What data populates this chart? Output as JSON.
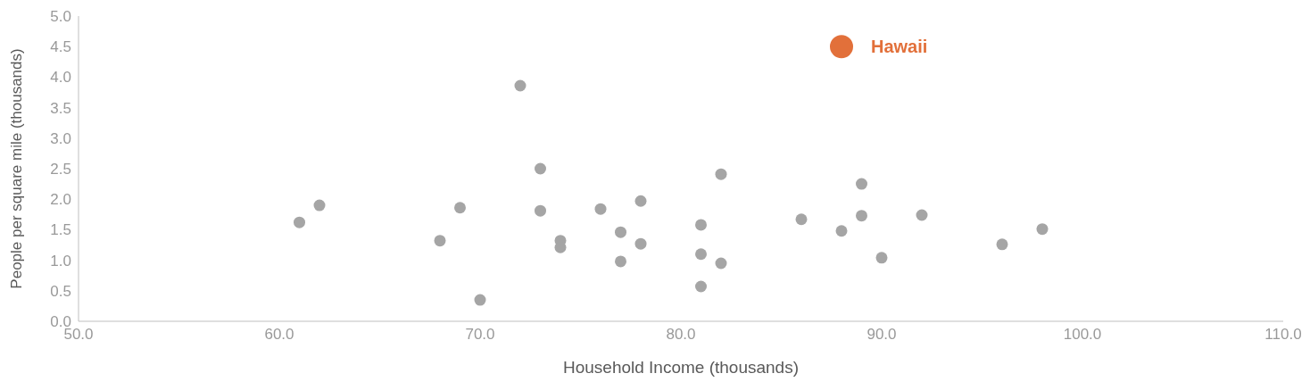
{
  "chart_data": {
    "type": "scatter",
    "xlabel": "Household Income (thousands)",
    "ylabel": "People per square mile (thousands)",
    "marker": "circle",
    "xlim": [
      50,
      110
    ],
    "ylim": [
      0,
      5
    ],
    "xticks": [
      {
        "value": 50,
        "label": "50.0"
      },
      {
        "value": 60,
        "label": "60.0"
      },
      {
        "value": 70,
        "label": "70.0"
      },
      {
        "value": 80,
        "label": "80.0"
      },
      {
        "value": 90,
        "label": "90.0"
      },
      {
        "value": 100,
        "label": "100.0"
      },
      {
        "value": 110,
        "label": "110.0"
      }
    ],
    "yticks": [
      {
        "value": 0,
        "label": "0.0"
      },
      {
        "value": 0.5,
        "label": "0.5"
      },
      {
        "value": 1,
        "label": "1.0"
      },
      {
        "value": 1.5,
        "label": "1.5"
      },
      {
        "value": 2,
        "label": "2.0"
      },
      {
        "value": 2.5,
        "label": "2.5"
      },
      {
        "value": 3,
        "label": "3.0"
      },
      {
        "value": 3.5,
        "label": "3.5"
      },
      {
        "value": 4,
        "label": "4.0"
      },
      {
        "value": 4.5,
        "label": "4.5"
      },
      {
        "value": 5,
        "label": "5.0"
      }
    ],
    "series": [
      {
        "color": "#a5a5a5",
        "x": [
          61,
          62,
          68,
          69,
          70,
          72,
          73,
          73,
          74,
          74,
          76,
          77,
          77,
          78,
          78,
          81,
          81,
          81,
          82,
          82,
          86,
          88,
          89,
          89,
          90,
          92,
          96,
          98
        ],
        "values": [
          1.62,
          1.9,
          1.32,
          1.86,
          0.35,
          3.86,
          2.5,
          1.81,
          1.32,
          1.21,
          1.84,
          1.46,
          0.98,
          1.97,
          1.27,
          1.58,
          1.1,
          0.57,
          2.41,
          0.95,
          1.67,
          1.48,
          2.25,
          1.73,
          1.04,
          1.74,
          1.26,
          1.51
        ]
      },
      {
        "name": "Hawaii",
        "color": "#e2703a",
        "x": [
          88
        ],
        "values": [
          4.5
        ]
      }
    ]
  }
}
